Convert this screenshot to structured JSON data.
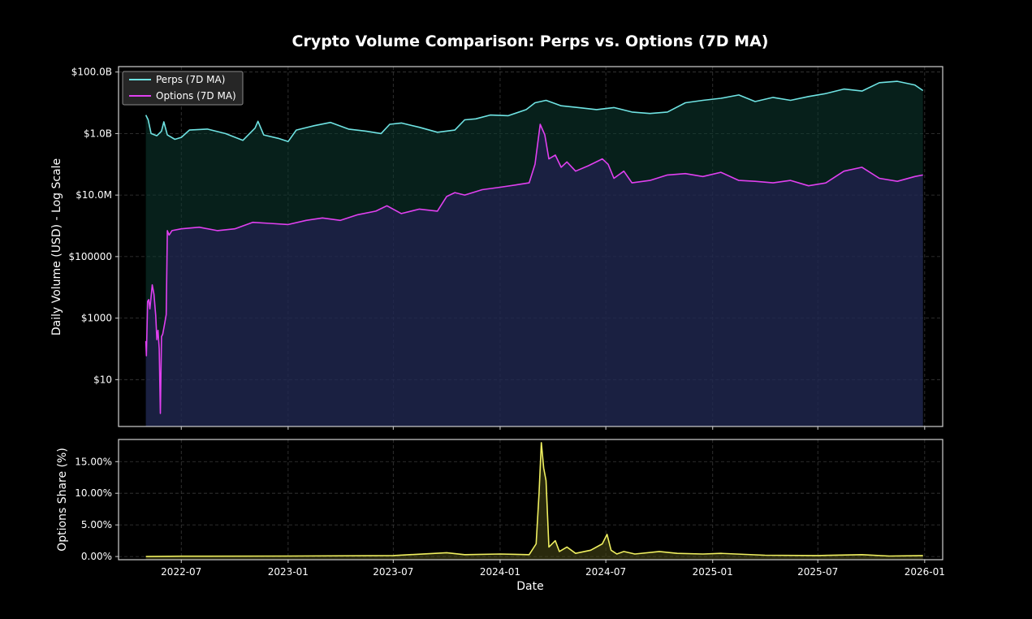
{
  "chart_data": [
    {
      "type": "line",
      "title": "Crypto Volume Comparison: Perps vs. Options (7D MA)",
      "xlabel": "",
      "ylabel": "Daily Volume (USD) - Log Scale",
      "yscale": "log",
      "ylim": [
        0.3,
        150000000000
      ],
      "xlim": [
        "2022-03-15",
        "2026-02-01"
      ],
      "grid": true,
      "legend": "top-left",
      "x_ticks": [
        "2022-07",
        "2023-01",
        "2023-07",
        "2024-01",
        "2024-07",
        "2025-01",
        "2025-07",
        "2026-01"
      ],
      "y_ticks": [
        {
          "value": 10,
          "label": "$10"
        },
        {
          "value": 1000,
          "label": "$1000"
        },
        {
          "value": 100000,
          "label": "$100000"
        },
        {
          "value": 10000000,
          "label": "$10.0M"
        },
        {
          "value": 1000000000,
          "label": "$1.0B"
        },
        {
          "value": 100000000000,
          "label": "$100.0B"
        }
      ],
      "series": [
        {
          "name": "Perps (7D MA)",
          "color": "#6fe3e3",
          "fill": "#0d3b32",
          "points": [
            [
              "2022-05-01",
              4000000000.0
            ],
            [
              "2022-05-05",
              2800000000.0
            ],
            [
              "2022-05-10",
              1000000000.0
            ],
            [
              "2022-05-20",
              850000000.0
            ],
            [
              "2022-05-28",
              1200000000.0
            ],
            [
              "2022-06-01",
              2400000000.0
            ],
            [
              "2022-06-07",
              900000000.0
            ],
            [
              "2022-06-20",
              650000000.0
            ],
            [
              "2022-07-01",
              750000000.0
            ],
            [
              "2022-07-15",
              1300000000.0
            ],
            [
              "2022-08-15",
              1400000000.0
            ],
            [
              "2022-09-15",
              1000000000.0
            ],
            [
              "2022-10-15",
              600000000.0
            ],
            [
              "2022-11-05",
              1500000000.0
            ],
            [
              "2022-11-10",
              2500000000.0
            ],
            [
              "2022-11-20",
              900000000.0
            ],
            [
              "2022-12-15",
              700000000.0
            ],
            [
              "2023-01-01",
              550000000.0
            ],
            [
              "2023-01-15",
              1300000000.0
            ],
            [
              "2023-02-15",
              1800000000.0
            ],
            [
              "2023-03-15",
              2300000000.0
            ],
            [
              "2023-04-15",
              1400000000.0
            ],
            [
              "2023-05-15",
              1200000000.0
            ],
            [
              "2023-06-10",
              1000000000.0
            ],
            [
              "2023-06-25",
              2000000000.0
            ],
            [
              "2023-07-15",
              2200000000.0
            ],
            [
              "2023-08-15",
              1600000000.0
            ],
            [
              "2023-09-15",
              1100000000.0
            ],
            [
              "2023-10-15",
              1300000000.0
            ],
            [
              "2023-11-01",
              2800000000.0
            ],
            [
              "2023-11-20",
              3000000000.0
            ],
            [
              "2023-12-15",
              4000000000.0
            ],
            [
              "2024-01-15",
              3800000000.0
            ],
            [
              "2024-02-15",
              6000000000.0
            ],
            [
              "2024-03-01",
              10000000000.0
            ],
            [
              "2024-03-20",
              12000000000.0
            ],
            [
              "2024-04-15",
              8000000000.0
            ],
            [
              "2024-05-15",
              7000000000.0
            ],
            [
              "2024-06-15",
              6000000000.0
            ],
            [
              "2024-07-15",
              7000000000.0
            ],
            [
              "2024-08-15",
              5000000000.0
            ],
            [
              "2024-09-15",
              4500000000.0
            ],
            [
              "2024-10-15",
              5000000000.0
            ],
            [
              "2024-11-15",
              10000000000.0
            ],
            [
              "2024-12-15",
              12000000000.0
            ],
            [
              "2025-01-15",
              14000000000.0
            ],
            [
              "2025-02-15",
              18000000000.0
            ],
            [
              "2025-03-15",
              11000000000.0
            ],
            [
              "2025-04-15",
              15000000000.0
            ],
            [
              "2025-05-15",
              12000000000.0
            ],
            [
              "2025-06-15",
              16000000000.0
            ],
            [
              "2025-07-15",
              20000000000.0
            ],
            [
              "2025-08-15",
              28000000000.0
            ],
            [
              "2025-09-15",
              24000000000.0
            ],
            [
              "2025-10-15",
              45000000000.0
            ],
            [
              "2025-11-15",
              50000000000.0
            ],
            [
              "2025-12-15",
              38000000000.0
            ],
            [
              "2025-12-29",
              25000000000.0
            ]
          ]
        },
        {
          "name": "Options (7D MA)",
          "color": "#e040f0",
          "fill": "#2a2060",
          "points": [
            [
              "2022-05-01",
              180
            ],
            [
              "2022-05-02",
              60
            ],
            [
              "2022-05-04",
              3500
            ],
            [
              "2022-05-06",
              4000
            ],
            [
              "2022-05-08",
              2000
            ],
            [
              "2022-05-10",
              5000
            ],
            [
              "2022-05-12",
              12000
            ],
            [
              "2022-05-15",
              6000
            ],
            [
              "2022-05-18",
              1200
            ],
            [
              "2022-05-20",
              200
            ],
            [
              "2022-05-22",
              400
            ],
            [
              "2022-05-24",
              100
            ],
            [
              "2022-05-26",
              0.8
            ],
            [
              "2022-05-28",
              250
            ],
            [
              "2022-05-30",
              300
            ],
            [
              "2022-06-02",
              600
            ],
            [
              "2022-06-05",
              1300
            ],
            [
              "2022-06-07",
              700000
            ],
            [
              "2022-06-10",
              500000
            ],
            [
              "2022-06-15",
              700000
            ],
            [
              "2022-07-01",
              800000
            ],
            [
              "2022-08-01",
              900000
            ],
            [
              "2022-09-01",
              700000
            ],
            [
              "2022-10-01",
              800000
            ],
            [
              "2022-11-01",
              1300000
            ],
            [
              "2022-12-01",
              1200000
            ],
            [
              "2023-01-01",
              1100000
            ],
            [
              "2023-02-01",
              1500000
            ],
            [
              "2023-03-01",
              1800000
            ],
            [
              "2023-04-01",
              1500000
            ],
            [
              "2023-05-01",
              2300000
            ],
            [
              "2023-06-01",
              3000000
            ],
            [
              "2023-06-20",
              4500000
            ],
            [
              "2023-07-15",
              2500000
            ],
            [
              "2023-08-15",
              3500000
            ],
            [
              "2023-09-15",
              3000000
            ],
            [
              "2023-10-01",
              9000000
            ],
            [
              "2023-10-15",
              12000000
            ],
            [
              "2023-11-01",
              10000000
            ],
            [
              "2023-12-01",
              15000000
            ],
            [
              "2024-01-01",
              18000000
            ],
            [
              "2024-02-01",
              22000000
            ],
            [
              "2024-02-20",
              25000000
            ],
            [
              "2024-03-01",
              100000000
            ],
            [
              "2024-03-10",
              2000000000
            ],
            [
              "2024-03-18",
              900000000
            ],
            [
              "2024-03-25",
              150000000
            ],
            [
              "2024-04-05",
              200000000
            ],
            [
              "2024-04-15",
              80000000
            ],
            [
              "2024-04-25",
              120000000
            ],
            [
              "2024-05-10",
              60000000
            ],
            [
              "2024-06-01",
              90000000
            ],
            [
              "2024-06-25",
              150000000
            ],
            [
              "2024-07-05",
              100000000
            ],
            [
              "2024-07-15",
              35000000
            ],
            [
              "2024-08-01",
              60000000
            ],
            [
              "2024-08-15",
              25000000
            ],
            [
              "2024-09-15",
              30000000
            ],
            [
              "2024-10-15",
              45000000
            ],
            [
              "2024-11-15",
              50000000
            ],
            [
              "2024-12-15",
              40000000
            ],
            [
              "2025-01-15",
              55000000
            ],
            [
              "2025-02-15",
              30000000
            ],
            [
              "2025-03-15",
              28000000
            ],
            [
              "2025-04-15",
              25000000
            ],
            [
              "2025-05-15",
              30000000
            ],
            [
              "2025-06-15",
              20000000
            ],
            [
              "2025-07-15",
              25000000
            ],
            [
              "2025-08-15",
              60000000
            ],
            [
              "2025-09-15",
              80000000
            ],
            [
              "2025-10-15",
              35000000
            ],
            [
              "2025-11-15",
              28000000
            ],
            [
              "2025-12-15",
              40000000
            ],
            [
              "2025-12-29",
              45000000
            ]
          ]
        }
      ]
    },
    {
      "type": "area",
      "title": "",
      "xlabel": "Date",
      "ylabel": "Options Share (%)",
      "ylim": [
        -0.5,
        18.5
      ],
      "xlim": [
        "2022-03-15",
        "2026-02-01"
      ],
      "grid": true,
      "x_ticks": [
        "2022-07",
        "2023-01",
        "2023-07",
        "2024-01",
        "2024-07",
        "2025-01",
        "2025-07",
        "2026-01"
      ],
      "y_ticks": [
        {
          "value": 0,
          "label": "0.00%"
        },
        {
          "value": 5,
          "label": "5.00%"
        },
        {
          "value": 10,
          "label": "10.00%"
        },
        {
          "value": 15,
          "label": "15.00%"
        }
      ],
      "series": [
        {
          "name": "Options Share (%)",
          "color": "#f0f060",
          "fill": "#4a4a18",
          "points": [
            [
              "2022-05-01",
              0.0
            ],
            [
              "2022-07-01",
              0.05
            ],
            [
              "2023-01-01",
              0.08
            ],
            [
              "2023-07-01",
              0.15
            ],
            [
              "2023-10-01",
              0.6
            ],
            [
              "2023-11-01",
              0.3
            ],
            [
              "2024-01-01",
              0.4
            ],
            [
              "2024-02-20",
              0.3
            ],
            [
              "2024-03-03",
              2.0
            ],
            [
              "2024-03-08",
              10.0
            ],
            [
              "2024-03-12",
              18.0
            ],
            [
              "2024-03-16",
              14.0
            ],
            [
              "2024-03-20",
              12.0
            ],
            [
              "2024-03-25",
              1.5
            ],
            [
              "2024-04-05",
              2.5
            ],
            [
              "2024-04-12",
              0.8
            ],
            [
              "2024-04-25",
              1.5
            ],
            [
              "2024-05-10",
              0.5
            ],
            [
              "2024-06-05",
              1.0
            ],
            [
              "2024-06-25",
              2.0
            ],
            [
              "2024-07-03",
              3.5
            ],
            [
              "2024-07-10",
              1.0
            ],
            [
              "2024-07-20",
              0.4
            ],
            [
              "2024-08-01",
              0.8
            ],
            [
              "2024-08-20",
              0.4
            ],
            [
              "2024-10-01",
              0.8
            ],
            [
              "2024-11-01",
              0.5
            ],
            [
              "2024-12-15",
              0.4
            ],
            [
              "2025-01-15",
              0.5
            ],
            [
              "2025-04-01",
              0.2
            ],
            [
              "2025-07-01",
              0.15
            ],
            [
              "2025-09-15",
              0.3
            ],
            [
              "2025-11-01",
              0.08
            ],
            [
              "2025-12-29",
              0.15
            ]
          ]
        }
      ]
    }
  ]
}
